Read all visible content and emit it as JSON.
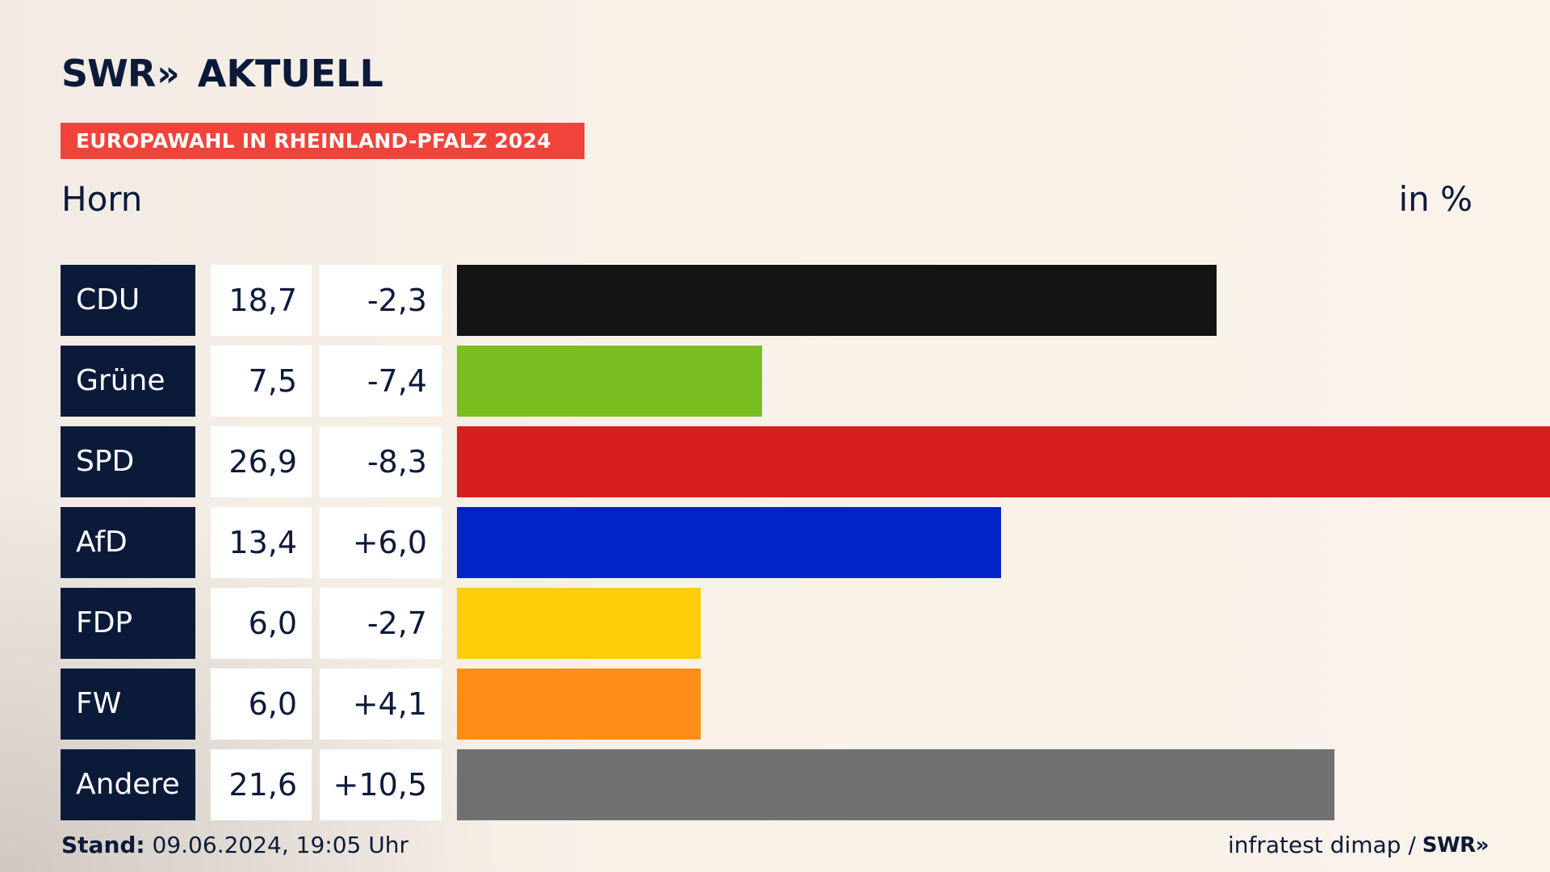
{
  "brand": {
    "swr": "SWR",
    "chevrons": "»",
    "product": "AKTUELL"
  },
  "banner": "EUROPAWAHL IN RHEINLAND-PFALZ 2024",
  "place": "Horn",
  "unit": "in %",
  "colors": {
    "navy": "#0c1a3a",
    "banner": "#f2433a"
  },
  "chart_data": {
    "type": "bar",
    "orientation": "horizontal",
    "categories": [
      "CDU",
      "Grüne",
      "SPD",
      "AfD",
      "FDP",
      "FW",
      "Andere"
    ],
    "values": [
      18.7,
      7.5,
      26.9,
      13.4,
      6.0,
      6.0,
      21.6
    ],
    "value_labels": [
      "18,7",
      "7,5",
      "26,9",
      "13,4",
      "6,0",
      "6,0",
      "21,6"
    ],
    "change_labels": [
      "-2,3",
      "-7,4",
      "-8,3",
      "+6,0",
      "-2,7",
      "+4,1",
      "+10,5"
    ],
    "changes": [
      -2.3,
      -7.4,
      -8.3,
      6.0,
      -2.7,
      4.1,
      10.5
    ],
    "bar_colors": [
      "#141414",
      "#79be1f",
      "#d81f1f",
      "#0223c8",
      "#fece0b",
      "#fe8d17",
      "#707173"
    ],
    "xlim": [
      0,
      26.9
    ]
  },
  "footer": {
    "stand_label": "Stand:",
    "stand_value": "09.06.2024, 19:05 Uhr",
    "source": "infratest dimap /",
    "source_brand": "SWR»"
  }
}
